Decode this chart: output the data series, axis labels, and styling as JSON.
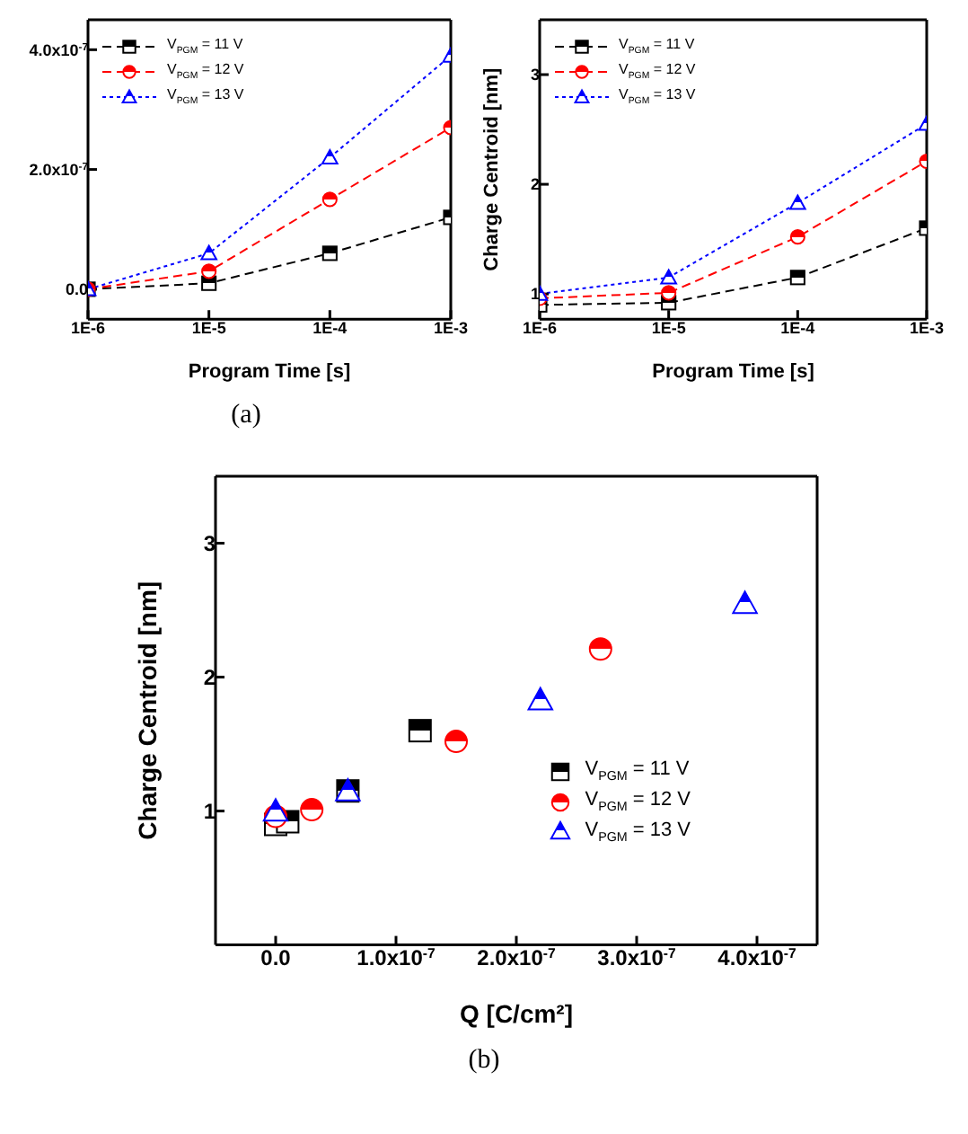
{
  "chart_data": [
    {
      "type": "line",
      "log": "x",
      "xlabel": "Program Time [s]",
      "x": [
        1e-06,
        1e-05,
        0.0001,
        0.001
      ],
      "xlim": [
        1e-06,
        0.001
      ],
      "xticks": [
        {
          "value": 1e-06,
          "label": "1E-6"
        },
        {
          "value": 1e-05,
          "label": "1E-5"
        },
        {
          "value": 0.0001,
          "label": "1E-4"
        },
        {
          "value": 0.001,
          "label": "1E-3"
        }
      ],
      "ylim": [
        -5e-08,
        4.5e-07
      ],
      "yticks": [
        {
          "value": 0,
          "label": "0.0"
        },
        {
          "value": 2e-07,
          "label": "2.0x10$^{-7}$"
        },
        {
          "value": 4e-07,
          "label": "4.0x10$^{-7}$"
        }
      ],
      "legend": "top left",
      "grid": false,
      "annotations": [
        "(a)"
      ],
      "series": [
        {
          "name": "V$_{PGM}$ = 11 V",
          "color": "#000000",
          "marker": "square",
          "line_style": "dashed",
          "values": [
            0,
            1e-08,
            6e-08,
            1.2e-07
          ]
        },
        {
          "name": "V$_{PGM}$ = 12 V",
          "color": "#ff0000",
          "marker": "circle",
          "line_style": "dashed",
          "values": [
            0,
            3e-08,
            1.5e-07,
            2.7e-07
          ]
        },
        {
          "name": "V$_{PGM}$ = 13 V",
          "color": "#0000ff",
          "marker": "triangle",
          "line_style": "dotted",
          "values": [
            0,
            6e-08,
            2.2e-07,
            3.9e-07
          ]
        }
      ]
    },
    {
      "type": "line",
      "log": "x",
      "xlabel": "Program Time [s]",
      "ylabel": "Charge Centroid [nm]",
      "x": [
        1e-06,
        1e-05,
        0.0001,
        0.001
      ],
      "xlim": [
        1e-06,
        0.001
      ],
      "xticks": [
        {
          "value": 1e-06,
          "label": "1E-6"
        },
        {
          "value": 1e-05,
          "label": "1E-5"
        },
        {
          "value": 0.0001,
          "label": "1E-4"
        },
        {
          "value": 0.001,
          "label": "1E-3"
        }
      ],
      "ylim": [
        0.77,
        3.5
      ],
      "yticks": [
        1,
        2,
        3
      ],
      "legend": "top left",
      "grid": false,
      "series": [
        {
          "name": "V$_{PGM}$ = 11 V",
          "color": "#000000",
          "marker": "square",
          "line_style": "dashed",
          "values": [
            0.9,
            0.92,
            1.15,
            1.6
          ]
        },
        {
          "name": "V$_{PGM}$ = 12 V",
          "color": "#ff0000",
          "marker": "circle",
          "line_style": "dashed",
          "values": [
            0.96,
            1.01,
            1.52,
            2.21
          ]
        },
        {
          "name": "V$_{PGM}$ = 13 V",
          "color": "#0000ff",
          "marker": "triangle",
          "line_style": "dotted",
          "values": [
            1.0,
            1.15,
            1.83,
            2.55
          ]
        }
      ]
    },
    {
      "type": "scatter",
      "xlabel": "Q [C/cm²]",
      "ylabel": "Charge Centroid [nm]",
      "xlim": [
        -5e-08,
        4.5e-07
      ],
      "xticks": [
        {
          "value": 0,
          "label": "0.0"
        },
        {
          "value": 1e-07,
          "label": "1.0x10$^{-7}$"
        },
        {
          "value": 2e-07,
          "label": "2.0x10$^{-7}$"
        },
        {
          "value": 3e-07,
          "label": "3.0x10$^{-7}$"
        },
        {
          "value": 4e-07,
          "label": "4.0x10$^{-7}$"
        }
      ],
      "ylim": [
        0,
        3.5
      ],
      "yticks": [
        1,
        2,
        3
      ],
      "legend": "right",
      "grid": false,
      "annotations": [
        "(b)"
      ],
      "series": [
        {
          "name": "V$_{PGM}$ = 11 V",
          "color": "#000000",
          "marker": "square",
          "x": [
            0,
            1e-08,
            6e-08,
            1.2e-07
          ],
          "values": [
            0.9,
            0.92,
            1.15,
            1.6
          ]
        },
        {
          "name": "V$_{PGM}$ = 12 V",
          "color": "#ff0000",
          "marker": "circle",
          "x": [
            0,
            3e-08,
            1.5e-07,
            2.7e-07
          ],
          "values": [
            0.96,
            1.01,
            1.52,
            2.21
          ]
        },
        {
          "name": "V$_{PGM}$ = 13 V",
          "color": "#0000ff",
          "marker": "triangle",
          "x": [
            0,
            6e-08,
            2.2e-07,
            3.9e-07
          ],
          "values": [
            1.0,
            1.15,
            1.83,
            2.55
          ]
        }
      ]
    }
  ]
}
